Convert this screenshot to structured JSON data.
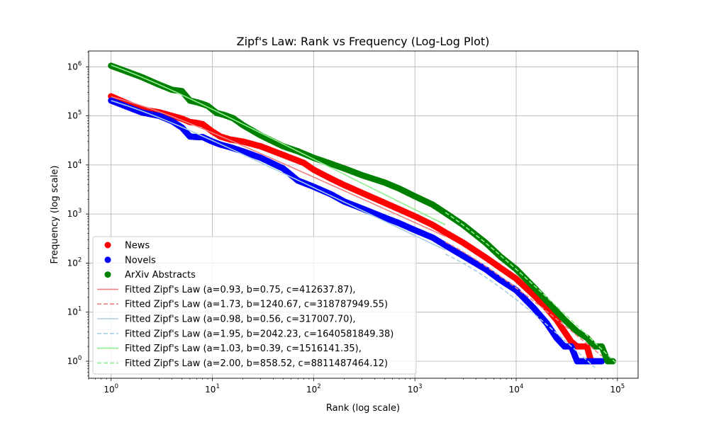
{
  "chart_data": {
    "type": "scatter",
    "title": "Zipf's Law: Rank vs Frequency (Log-Log Plot)",
    "xlabel": "Rank (log scale)",
    "ylabel": "Frequency (log scale)",
    "xscale": "log",
    "yscale": "log",
    "xlim": [
      0.6,
      160000
    ],
    "ylim": [
      0.45,
      2100000
    ],
    "grid": true,
    "legend_position": "lower-left",
    "x_ticks": [
      {
        "value": 1,
        "base": "10",
        "exp": "0"
      },
      {
        "value": 10,
        "base": "10",
        "exp": "1"
      },
      {
        "value": 100,
        "base": "10",
        "exp": "2"
      },
      {
        "value": 1000,
        "base": "10",
        "exp": "3"
      },
      {
        "value": 10000,
        "base": "10",
        "exp": "4"
      },
      {
        "value": 100000,
        "base": "10",
        "exp": "5"
      }
    ],
    "y_ticks": [
      {
        "value": 1,
        "base": "10",
        "exp": "0"
      },
      {
        "value": 10,
        "base": "10",
        "exp": "1"
      },
      {
        "value": 100,
        "base": "10",
        "exp": "2"
      },
      {
        "value": 1000,
        "base": "10",
        "exp": "3"
      },
      {
        "value": 10000,
        "base": "10",
        "exp": "4"
      },
      {
        "value": 100000,
        "base": "10",
        "exp": "5"
      },
      {
        "value": 1000000,
        "base": "10",
        "exp": "6"
      }
    ],
    "series": [
      {
        "name": "News",
        "color": "#ff0000",
        "points": [
          [
            1,
            250000
          ],
          [
            2,
            135000
          ],
          [
            3,
            118000
          ],
          [
            4,
            100000
          ],
          [
            5,
            88000
          ],
          [
            6,
            75000
          ],
          [
            7,
            72000
          ],
          [
            8,
            68000
          ],
          [
            10,
            48000
          ],
          [
            12,
            38000
          ],
          [
            15,
            33000
          ],
          [
            20,
            30000
          ],
          [
            30,
            24000
          ],
          [
            50,
            16000
          ],
          [
            80,
            11000
          ],
          [
            100,
            8000
          ],
          [
            150,
            5200
          ],
          [
            200,
            3900
          ],
          [
            300,
            2700
          ],
          [
            500,
            1700
          ],
          [
            700,
            1250
          ],
          [
            1000,
            900
          ],
          [
            1500,
            600
          ],
          [
            2000,
            420
          ],
          [
            3000,
            260
          ],
          [
            5000,
            130
          ],
          [
            7000,
            80
          ],
          [
            10000,
            48
          ],
          [
            15000,
            22
          ],
          [
            20000,
            12
          ],
          [
            25000,
            7
          ],
          [
            30000,
            4
          ],
          [
            35000,
            2.5
          ],
          [
            40000,
            2
          ],
          [
            45000,
            2
          ],
          [
            50000,
            2
          ],
          [
            55000,
            1
          ],
          [
            60000,
            1
          ],
          [
            65000,
            1
          ]
        ]
      },
      {
        "name": "Novels",
        "color": "#0000ff",
        "points": [
          [
            1,
            205000
          ],
          [
            2,
            118000
          ],
          [
            3,
            100000
          ],
          [
            4,
            78000
          ],
          [
            5,
            58000
          ],
          [
            6,
            38000
          ],
          [
            7,
            37000
          ],
          [
            8,
            37000
          ],
          [
            10,
            30000
          ],
          [
            12,
            26000
          ],
          [
            15,
            23000
          ],
          [
            20,
            19000
          ],
          [
            30,
            14000
          ],
          [
            50,
            8500
          ],
          [
            70,
            4800
          ],
          [
            100,
            3600
          ],
          [
            150,
            2500
          ],
          [
            200,
            1800
          ],
          [
            300,
            1300
          ],
          [
            500,
            850
          ],
          [
            700,
            650
          ],
          [
            1000,
            470
          ],
          [
            1500,
            330
          ],
          [
            2000,
            230
          ],
          [
            3000,
            140
          ],
          [
            5000,
            75
          ],
          [
            7000,
            45
          ],
          [
            10000,
            28
          ],
          [
            15000,
            12
          ],
          [
            20000,
            6
          ],
          [
            25000,
            3
          ],
          [
            30000,
            2
          ],
          [
            35000,
            2
          ],
          [
            40000,
            1
          ],
          [
            50000,
            1
          ],
          [
            60000,
            1
          ],
          [
            70000,
            1
          ]
        ]
      },
      {
        "name": "ArXiv Abstracts",
        "color": "#008000",
        "points": [
          [
            1,
            1050000
          ],
          [
            2,
            620000
          ],
          [
            3,
            430000
          ],
          [
            4,
            340000
          ],
          [
            5,
            320000
          ],
          [
            6,
            205000
          ],
          [
            7,
            190000
          ],
          [
            8,
            175000
          ],
          [
            9,
            160000
          ],
          [
            11,
            115000
          ],
          [
            13,
            105000
          ],
          [
            16,
            90000
          ],
          [
            20,
            65000
          ],
          [
            30,
            40000
          ],
          [
            50,
            24000
          ],
          [
            70,
            19000
          ],
          [
            100,
            14000
          ],
          [
            150,
            10500
          ],
          [
            200,
            8500
          ],
          [
            300,
            6200
          ],
          [
            500,
            4400
          ],
          [
            700,
            3300
          ],
          [
            1000,
            2300
          ],
          [
            1500,
            1550
          ],
          [
            2000,
            1050
          ],
          [
            3000,
            600
          ],
          [
            5000,
            260
          ],
          [
            7000,
            135
          ],
          [
            10000,
            75
          ],
          [
            15000,
            32
          ],
          [
            20000,
            17
          ],
          [
            30000,
            7
          ],
          [
            40000,
            4
          ],
          [
            50000,
            3
          ],
          [
            60000,
            2
          ],
          [
            70000,
            2
          ],
          [
            80000,
            1
          ],
          [
            90000,
            1
          ]
        ]
      }
    ],
    "fits": [
      {
        "label": "Fitted Zipf's Law (a=0.93, b=0.75, c=412637.87),",
        "color": "#f08080",
        "style": "solid",
        "a": 0.93,
        "b": 0.75,
        "c": 412637.87,
        "x_range": [
          1,
          2000
        ]
      },
      {
        "label": "Fitted Zipf's Law (a=1.73, b=1240.67, c=318787949.55)",
        "color": "#f08080",
        "style": "dashed",
        "a": 1.73,
        "b": 1240.67,
        "c": 318787949.55,
        "x_range": [
          2000,
          70000
        ]
      },
      {
        "label": "Fitted Zipf's Law (a=0.98, b=0.56, c=317007.70),",
        "color": "#a6cee3",
        "style": "solid",
        "a": 0.98,
        "b": 0.56,
        "c": 317007.7,
        "x_range": [
          1,
          2000
        ]
      },
      {
        "label": "Fitted Zipf's Law (a=1.95, b=2042.23, c=1640581849.38)",
        "color": "#a6cee3",
        "style": "dashed",
        "a": 1.95,
        "b": 2042.23,
        "c": 1640581849.38,
        "x_range": [
          2000,
          60000
        ]
      },
      {
        "label": "Fitted Zipf's Law (a=1.03, b=0.39, c=1516141.35),",
        "color": "#90ee90",
        "style": "solid",
        "a": 1.03,
        "b": 0.39,
        "c": 1516141.35,
        "x_range": [
          1,
          2000
        ]
      },
      {
        "label": "Fitted Zipf's Law (a=2.00, b=858.52, c=8811487464.12)",
        "color": "#90ee90",
        "style": "dashed",
        "a": 2.0,
        "b": 858.52,
        "c": 8811487464.12,
        "x_range": [
          2000,
          95000
        ]
      }
    ]
  }
}
